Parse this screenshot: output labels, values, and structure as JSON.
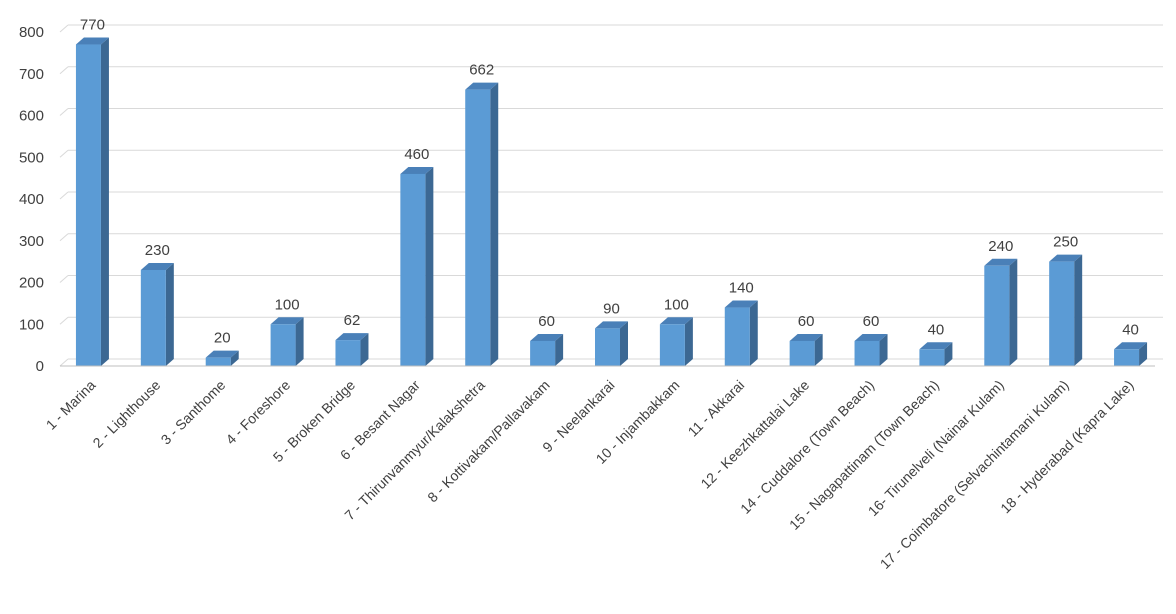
{
  "chart_data": {
    "type": "bar",
    "style": "3d-column",
    "categories": [
      "1 - Marina",
      "2 - Lighthouse",
      "3 - Santhome",
      "4 - Foreshore",
      "5 - Broken Bridge",
      "6 - Besant Nagar",
      "7 - Thirunvanmyur/Kalakshetra",
      "8 - Kottivakam/Pallavakam",
      "9 - Neelankarai",
      "10 - Injambakkam",
      "11 - Akkarai",
      "12 - Keezhkattalai Lake",
      "14 - Cuddalore (Town Beach)",
      "15 - Nagapattinam (Town Beach)",
      "16- Tirunelveli (Nainar Kulam)",
      "17 - Coimbatore (Selvachintamani Kulam)",
      "18 - Hyderabad (Kapra Lake)"
    ],
    "values": [
      770,
      230,
      20,
      100,
      62,
      460,
      662,
      60,
      90,
      100,
      140,
      60,
      60,
      40,
      240,
      250,
      40
    ],
    "title": "",
    "xlabel": "",
    "ylabel": "",
    "ylim": [
      0,
      800
    ],
    "yticks": [
      0,
      100,
      200,
      300,
      400,
      500,
      600,
      700,
      800
    ],
    "grid": true,
    "legend": "none",
    "data_labels": true,
    "colors": {
      "front": "#5b9bd5",
      "side": "#3c6893",
      "top": "#4a80b8"
    }
  }
}
